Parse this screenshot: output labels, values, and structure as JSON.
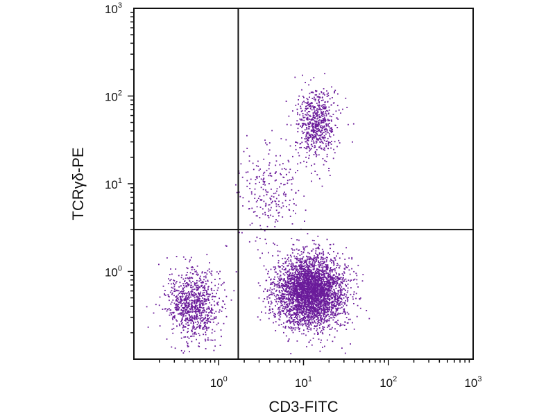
{
  "chart_data": {
    "type": "scatter",
    "xlabel": "CD3-FITC",
    "ylabel": "TCRγδ-PE",
    "x_scale": "log",
    "y_scale": "log",
    "xlim": [
      0.1,
      1000
    ],
    "ylim": [
      0.1,
      1000
    ],
    "x_ticks": [
      {
        "value": 1,
        "base": "10",
        "exp": "0"
      },
      {
        "value": 10,
        "base": "10",
        "exp": "1"
      },
      {
        "value": 100,
        "base": "10",
        "exp": "2"
      },
      {
        "value": 1000,
        "base": "10",
        "exp": "3"
      }
    ],
    "y_ticks": [
      {
        "value": 1,
        "base": "10",
        "exp": "0"
      },
      {
        "value": 10,
        "base": "10",
        "exp": "1"
      },
      {
        "value": 100,
        "base": "10",
        "exp": "2"
      },
      {
        "value": 1000,
        "base": "10",
        "exp": "3"
      }
    ],
    "quadrant_gate": {
      "x": 1.7,
      "y": 3.0
    },
    "grid": false,
    "legend": "none",
    "point_color": "#6a1b9a",
    "populations": [
      {
        "center_x": 0.5,
        "center_y": 0.42,
        "spread_x_log": 0.16,
        "spread_y_log": 0.2,
        "count": 900
      },
      {
        "center_x": 12.0,
        "center_y": 0.6,
        "spread_x_log": 0.2,
        "spread_y_log": 0.2,
        "count": 3600
      },
      {
        "center_x": 14.0,
        "center_y": 48.0,
        "spread_x_log": 0.12,
        "spread_y_log": 0.2,
        "count": 650
      },
      {
        "center_x": 4.0,
        "center_y": 8.0,
        "spread_x_log": 0.2,
        "spread_y_log": 0.3,
        "count": 250
      }
    ]
  }
}
